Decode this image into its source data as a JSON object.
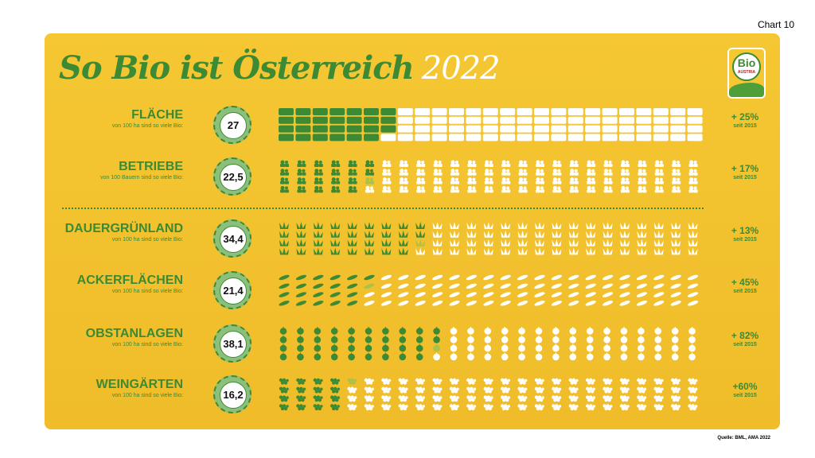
{
  "page_label": "Chart 10",
  "title": "So Bio ist Österreich",
  "title_year": "2022",
  "logo": {
    "text": "Bio",
    "subtext": "AUSTRIA"
  },
  "source": "Quelle: BML, AMA 2022",
  "colors": {
    "bio": "#3D8A34",
    "non_bio": "#FFFFFF",
    "partial": "#A9C24A",
    "background": "#F3C22F"
  },
  "chart_data": {
    "type": "pictogram",
    "title": "So Bio ist Österreich 2022",
    "units_per_grid": 100,
    "grid": {
      "columns": 25,
      "rows": 4,
      "fill_order": "column-major"
    },
    "series": [
      {
        "name": "FLÄCHE",
        "subtitle": "von 100 ha sind so viele Bio:",
        "value": 27,
        "value_label": "27",
        "change": "+ 25%",
        "since": "seit 2015",
        "icon": "field-icon"
      },
      {
        "name": "BETRIEBE",
        "subtitle": "von 100 Bauern sind so viele Bio:",
        "value": 22.5,
        "value_label": "22,5",
        "change": "+ 17%",
        "since": "seit 2015",
        "icon": "farmer-icon"
      },
      {
        "name": "DAUERGRÜNLAND",
        "subtitle": "von 100 ha sind so viele Bio:",
        "value": 34.4,
        "value_label": "34,4",
        "change": "+ 13%",
        "since": "seit 2015",
        "icon": "grass-icon"
      },
      {
        "name": "ACKERFLÄCHEN",
        "subtitle": "von 100 ha sind so viele Bio:",
        "value": 21.4,
        "value_label": "21,4",
        "change": "+ 45%",
        "since": "seit 2015",
        "icon": "grain-icon"
      },
      {
        "name": "OBSTANLAGEN",
        "subtitle": "von 100 ha sind so viele Bio:",
        "value": 38.1,
        "value_label": "38,1",
        "change": "+ 82%",
        "since": "seit 2015",
        "icon": "apple-icon"
      },
      {
        "name": "WEINGÄRTEN",
        "subtitle": "von 100 ha sind so viele Bio:",
        "value": 16.2,
        "value_label": "16,2",
        "change": "+60%",
        "since": "seit 2015",
        "icon": "grapes-icon"
      }
    ]
  }
}
